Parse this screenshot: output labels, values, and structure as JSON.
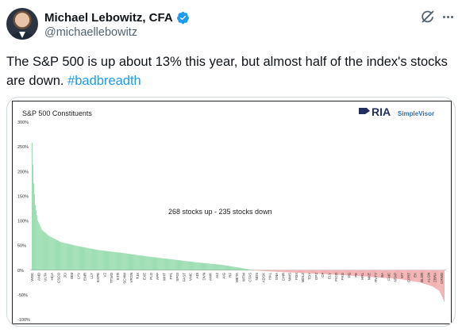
{
  "author": {
    "name": "Michael Lebowitz, CFA",
    "handle": "@michaellebowitz"
  },
  "tweet": {
    "text": "The S&P 500 is up about 13% this year, but almost half of the index's stocks are down.",
    "hashtag": "#badbreadth"
  },
  "colors": {
    "up": "#8fd9a8",
    "down": "#f0a5a5",
    "link": "#1d9bf0",
    "verified": "#1d9bf0",
    "brand": "#1f2f5e"
  },
  "brand": {
    "logo_text": "RIA",
    "logo_sub": "SimpleVisor"
  },
  "chart_data": {
    "type": "bar",
    "title": "S&P 500 Constituents",
    "annotation": "268 stocks up -  235 stocks down",
    "up_count": 268,
    "down_count": 235,
    "y_ticks": [
      "300%",
      "250%",
      "200%",
      "150%",
      "100%",
      "50%",
      "0%",
      "-50%",
      "-100%"
    ],
    "ylim": [
      -100,
      300
    ],
    "x_labels": [
      "WDC",
      "AMD",
      "ULTA",
      "HCA",
      "CSCO",
      "JCI",
      "IBM",
      "LYV",
      "EMR",
      "LLY",
      "EXPE",
      "VZ",
      "TTWO",
      "ETR",
      "SCHW",
      "VRSN",
      "TJX",
      "EXE",
      "PLD",
      "APP",
      "WHT",
      "PPL",
      "SPGI",
      "FAST",
      "VMC",
      "ADI",
      "DVN",
      "AWK",
      "AIZ",
      "AIG",
      "RF",
      "META",
      "WTW",
      "CTAS",
      "NDS",
      "ADSK",
      "HAL",
      "SNA",
      "DHR",
      "NWS",
      "FDX",
      "MDLZ",
      "TDY",
      "DPZ",
      "CF",
      "ELV",
      "FICO",
      "PKG",
      "PG",
      "FE",
      "HRL",
      "NKE",
      "RVTY",
      "BA",
      "FMC",
      "NTAP",
      "WY",
      "CPRT",
      "EK",
      "BLDR",
      "ALGN",
      "ZBRA",
      "CRWD"
    ],
    "profile_up": [
      [
        0,
        258
      ],
      [
        1,
        214
      ],
      [
        2,
        176
      ],
      [
        4,
        132
      ],
      [
        7,
        101
      ],
      [
        12,
        82
      ],
      [
        20,
        70
      ],
      [
        35,
        57
      ],
      [
        55,
        49
      ],
      [
        80,
        41
      ],
      [
        110,
        35
      ],
      [
        140,
        28
      ],
      [
        170,
        22
      ],
      [
        200,
        16
      ],
      [
        230,
        11
      ],
      [
        250,
        6
      ],
      [
        268,
        0.5
      ]
    ],
    "profile_down": [
      [
        0,
        -0.5
      ],
      [
        40,
        -4
      ],
      [
        90,
        -8
      ],
      [
        140,
        -13
      ],
      [
        180,
        -18
      ],
      [
        205,
        -25
      ],
      [
        220,
        -33
      ],
      [
        228,
        -42
      ],
      [
        232,
        -55
      ],
      [
        235,
        -68
      ]
    ]
  }
}
